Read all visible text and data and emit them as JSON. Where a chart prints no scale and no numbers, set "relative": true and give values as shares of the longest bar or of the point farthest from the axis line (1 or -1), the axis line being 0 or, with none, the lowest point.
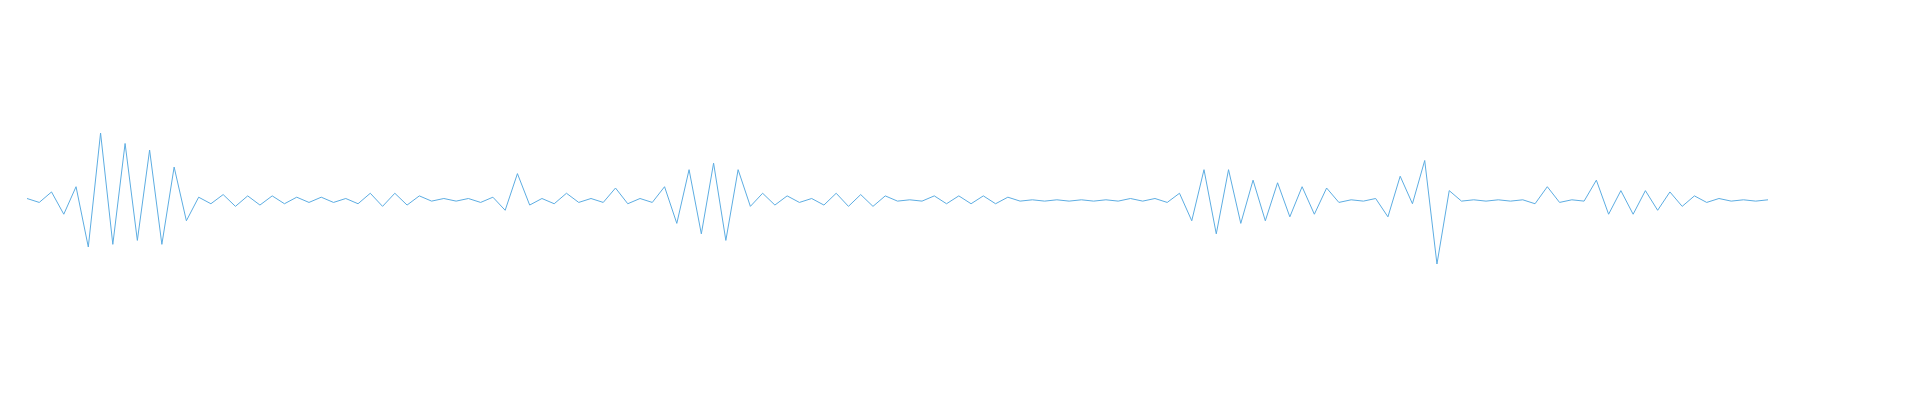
{
  "chart_data": {
    "type": "line",
    "relative": true,
    "color": "#5dade2",
    "legend": false,
    "marker": "none",
    "line_style": "solid",
    "categories": [
      null,
      null,
      null,
      null,
      null,
      null,
      null,
      null,
      null,
      null,
      null,
      null,
      null,
      null,
      null,
      null,
      null,
      null,
      null,
      null,
      null,
      null,
      null,
      null,
      null,
      null,
      null,
      null,
      null,
      null,
      null,
      null,
      null,
      null,
      null,
      null,
      null,
      null,
      null,
      null,
      null,
      null,
      null,
      null,
      null,
      null,
      null,
      null,
      null,
      null,
      null,
      null,
      null,
      null,
      null,
      null,
      null,
      null,
      null,
      null,
      null,
      null,
      null,
      null,
      null,
      null,
      null,
      null,
      null,
      null,
      null,
      null,
      null,
      null,
      null,
      null,
      null,
      null,
      null,
      null,
      null,
      null,
      null,
      null,
      null,
      null,
      null,
      null,
      null,
      null,
      null,
      null,
      null,
      null,
      null,
      null,
      null,
      null,
      null,
      null,
      null,
      null,
      null,
      null,
      null,
      null,
      null,
      null,
      null,
      null,
      null,
      null,
      null,
      null,
      null,
      null,
      null,
      null,
      null,
      null,
      null,
      null,
      null,
      null,
      null,
      null,
      null,
      null,
      null,
      null,
      null,
      null,
      null,
      null,
      null,
      null,
      null,
      null,
      null,
      null,
      null,
      null,
      null
    ],
    "values": [
      0.5,
      0.47,
      0.55,
      0.38,
      0.59,
      0.13,
      1,
      0.15,
      0.92,
      0.18,
      0.87,
      0.15,
      0.74,
      0.33,
      0.51,
      0.46,
      0.53,
      0.44,
      0.52,
      0.45,
      0.52,
      0.46,
      0.51,
      0.47,
      0.51,
      0.47,
      0.5,
      0.46,
      0.54,
      0.44,
      0.54,
      0.45,
      0.52,
      0.48,
      0.5,
      0.48,
      0.5,
      0.47,
      0.51,
      0.41,
      0.69,
      0.45,
      0.5,
      0.46,
      0.54,
      0.47,
      0.5,
      0.47,
      0.58,
      0.46,
      0.5,
      0.47,
      0.59,
      0.31,
      0.72,
      0.23,
      0.77,
      0.18,
      0.72,
      0.44,
      0.54,
      0.45,
      0.52,
      0.47,
      0.5,
      0.45,
      0.54,
      0.44,
      0.53,
      0.44,
      0.52,
      0.48,
      0.49,
      0.48,
      0.52,
      0.46,
      0.52,
      0.46,
      0.52,
      0.46,
      0.51,
      0.48,
      0.49,
      0.48,
      0.49,
      0.48,
      0.49,
      0.48,
      0.49,
      0.48,
      0.5,
      0.48,
      0.5,
      0.47,
      0.54,
      0.33,
      0.72,
      0.23,
      0.72,
      0.31,
      0.64,
      0.33,
      0.62,
      0.36,
      0.59,
      0.38,
      0.58,
      0.47,
      0.49,
      0.48,
      0.5,
      0.36,
      0.67,
      0.46,
      0.79,
      0,
      0.56,
      0.48,
      0.49,
      0.48,
      0.49,
      0.48,
      0.49,
      0.46,
      0.59,
      0.47,
      0.49,
      0.48,
      0.64,
      0.38,
      0.56,
      0.38,
      0.56,
      0.41,
      0.55,
      0.44,
      0.52,
      0.47,
      0.5,
      0.48,
      0.49,
      0.48,
      0.49
    ]
  }
}
